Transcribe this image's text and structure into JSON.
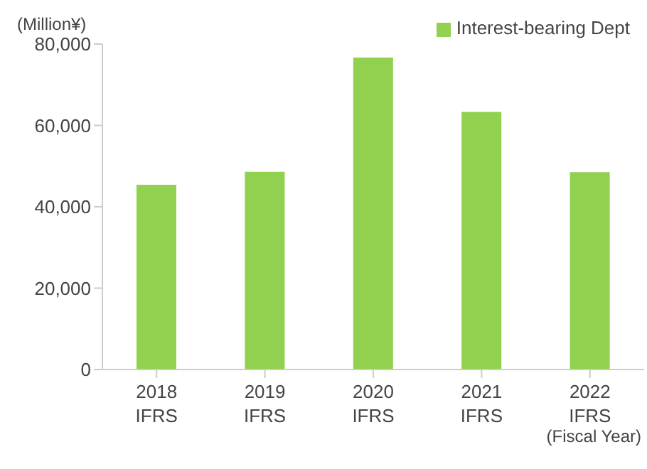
{
  "chart_data": {
    "type": "bar",
    "ylabel": "(Million¥)",
    "xlabel": "(Fiscal Year)",
    "categories": [
      "2018\nIFRS",
      "2019\nIFRS",
      "2020\nIFRS",
      "2021\nIFRS",
      "2022\nIFRS"
    ],
    "series": [
      {
        "name": "Interest-bearing Dept",
        "color": "#92d050",
        "values": [
          45400,
          48600,
          76700,
          63300,
          48500
        ]
      }
    ],
    "ylim": [
      0,
      80000
    ],
    "yticks": [
      {
        "value": 0,
        "label": "0"
      },
      {
        "value": 20000,
        "label": "20,000"
      },
      {
        "value": 40000,
        "label": "40,000"
      },
      {
        "value": 60000,
        "label": "60,000"
      },
      {
        "value": 80000,
        "label": "80,000"
      }
    ],
    "grid": false,
    "legend": "top right"
  }
}
